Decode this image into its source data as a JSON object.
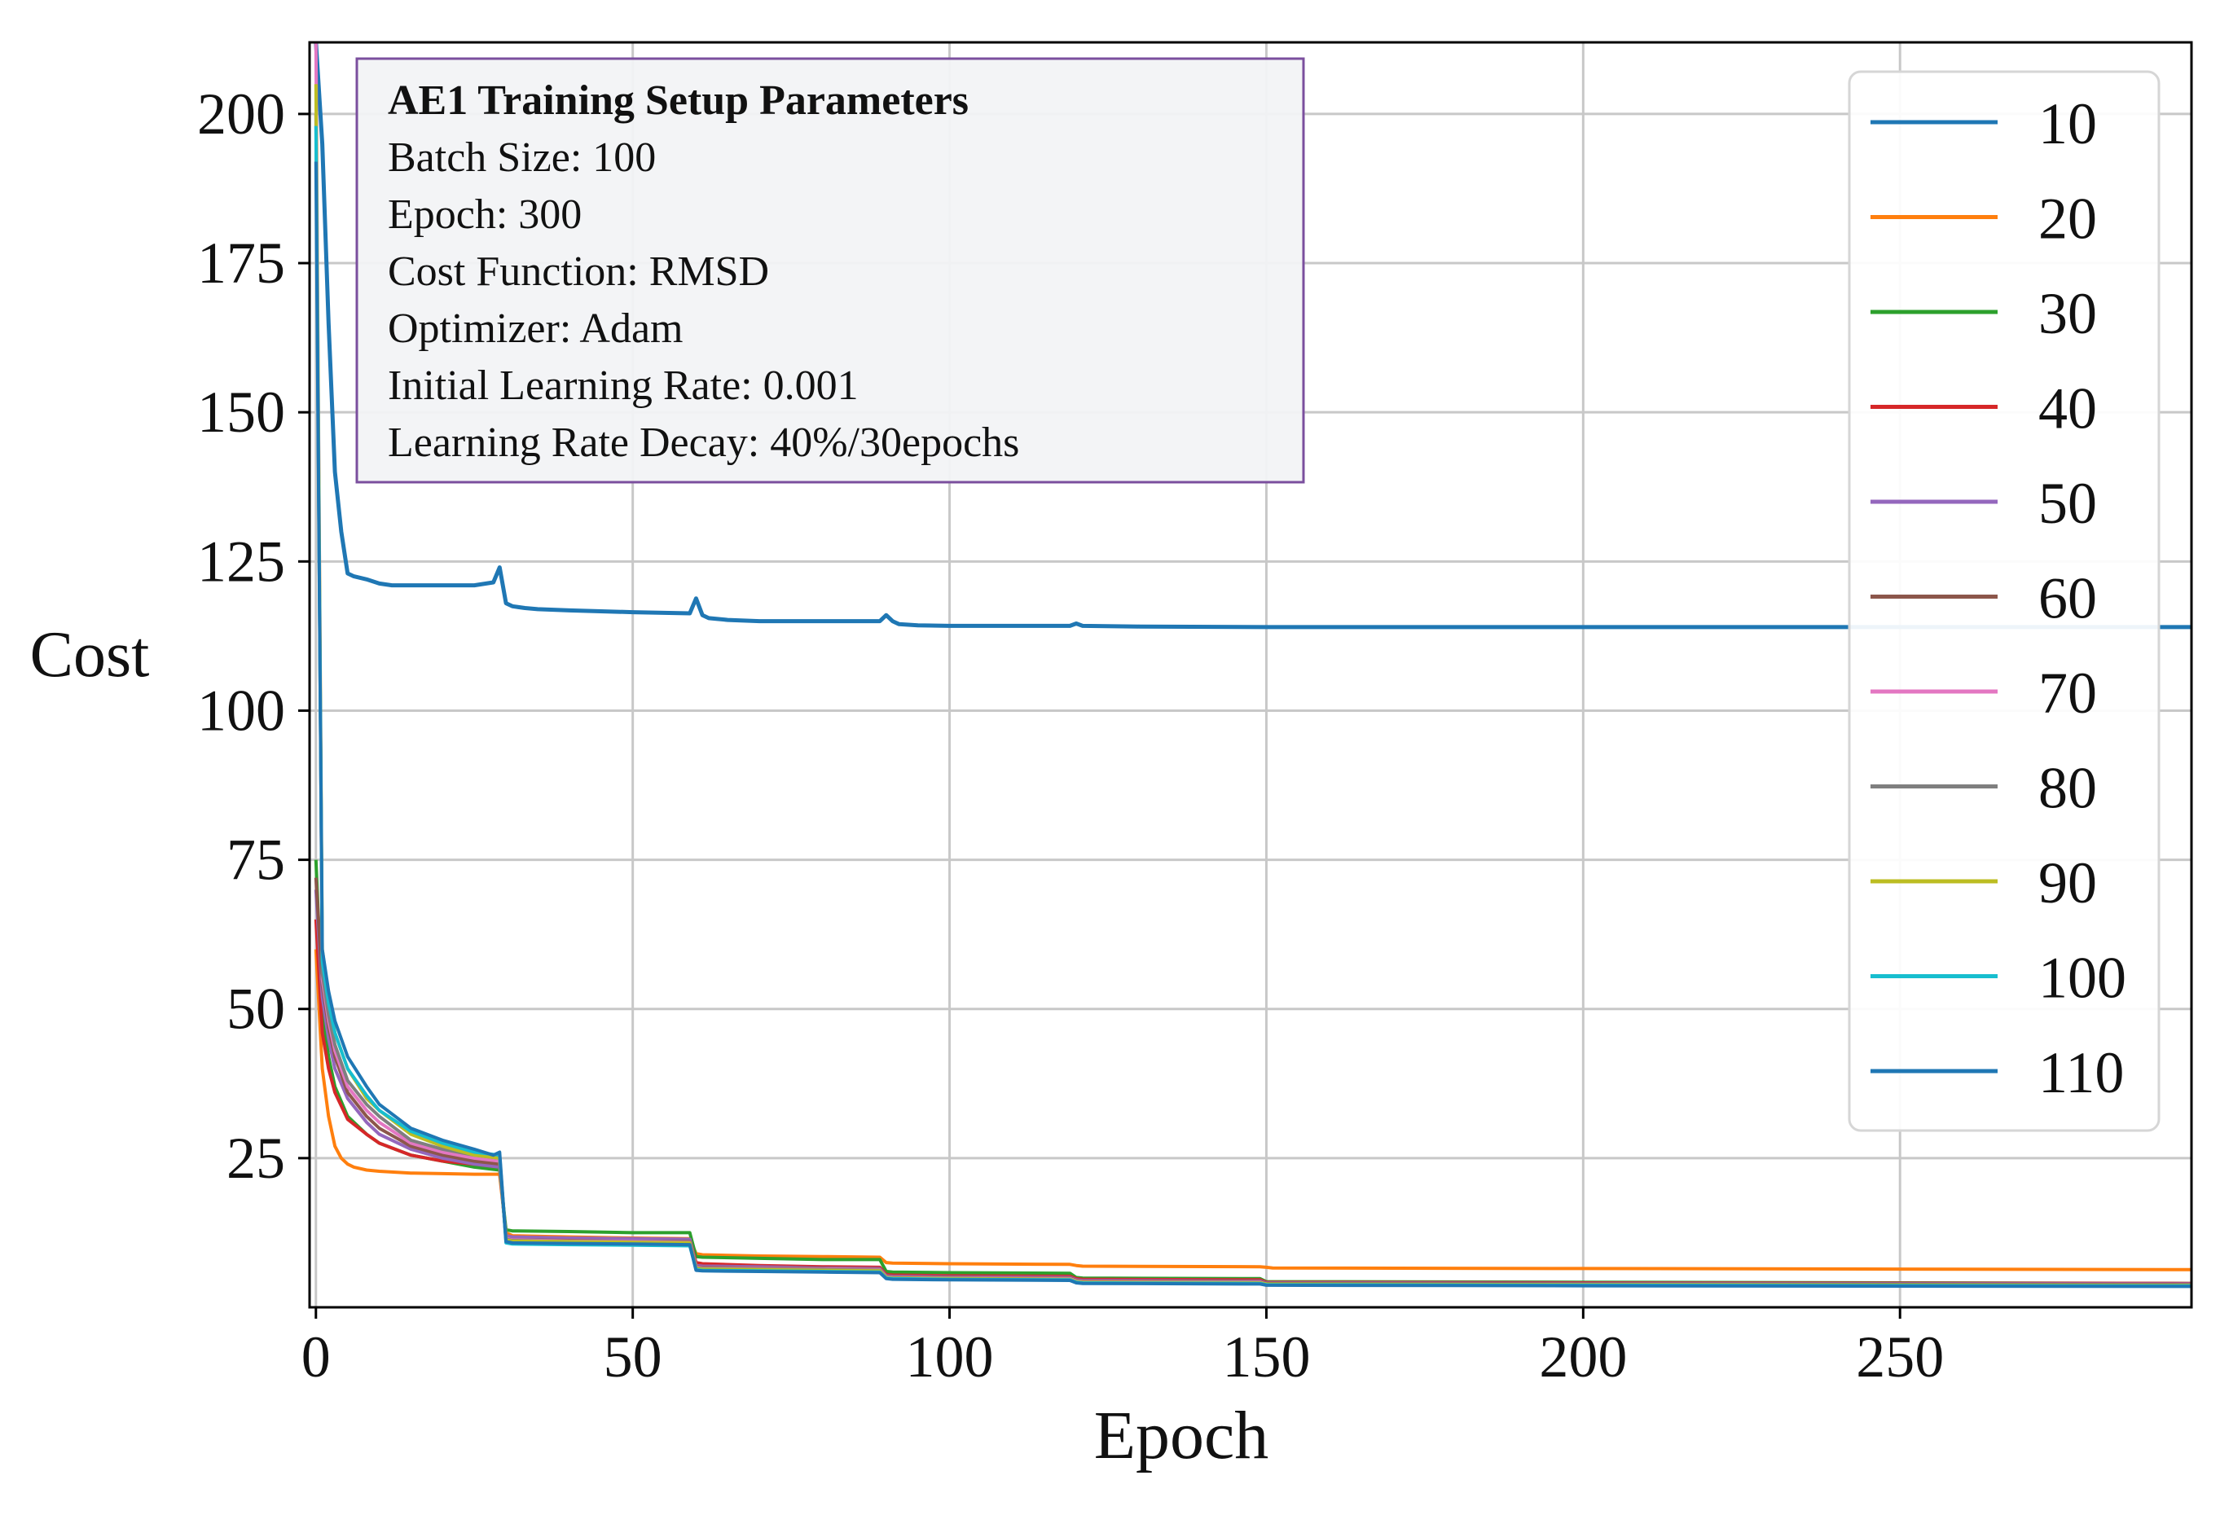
{
  "chart_data": {
    "type": "line",
    "xlabel": "Epoch",
    "ylabel": "Cost",
    "xlim": [
      -1,
      296
    ],
    "ylim": [
      0,
      212
    ],
    "grid": true,
    "xticks": [
      0,
      50,
      100,
      150,
      200,
      250
    ],
    "yticks": [
      25,
      50,
      75,
      100,
      125,
      150,
      175,
      200
    ],
    "legend_position": "top-right",
    "annotation": {
      "title": "AE1 Training Setup Parameters",
      "lines": [
        "Batch Size: 100",
        "Epoch: 300",
        "Cost Function: RMSD",
        "Optimizer: Adam",
        "Initial Learning Rate: 0.001",
        "Learning Rate Decay: 40%/30epochs"
      ]
    },
    "series": [
      {
        "name": "10",
        "color": "#1f77b4",
        "x": [
          0,
          1,
          2,
          3,
          4,
          5,
          6,
          8,
          10,
          12,
          15,
          18,
          20,
          25,
          28,
          29,
          30,
          31,
          33,
          35,
          40,
          50,
          59,
          60,
          61,
          62,
          65,
          70,
          80,
          89,
          90,
          91,
          92,
          95,
          100,
          119,
          120,
          121,
          130,
          150,
          180,
          200,
          250,
          296
        ],
        "y": [
          212,
          195,
          165,
          140,
          130,
          123,
          122.5,
          122,
          121.3,
          121,
          121,
          121,
          121,
          121,
          121.5,
          124,
          118,
          117.5,
          117.2,
          117,
          116.8,
          116.5,
          116.3,
          118.8,
          116,
          115.5,
          115.2,
          115,
          115,
          115,
          116,
          115,
          114.5,
          114.3,
          114.2,
          114.2,
          114.6,
          114.2,
          114.1,
          114,
          114,
          114,
          114,
          114
        ]
      },
      {
        "name": "20",
        "color": "#ff7f0e",
        "x": [
          0,
          1,
          2,
          3,
          4,
          5,
          6,
          8,
          10,
          15,
          20,
          25,
          29,
          30,
          31,
          40,
          50,
          59,
          60,
          61,
          70,
          80,
          89,
          90,
          91,
          100,
          119,
          120,
          121,
          149,
          150,
          151,
          200,
          250,
          296
        ],
        "y": [
          60,
          40,
          32,
          27,
          25,
          24,
          23.5,
          23,
          22.8,
          22.5,
          22.4,
          22.3,
          22.3,
          12.5,
          12,
          11.8,
          11.6,
          11.5,
          9,
          8.8,
          8.6,
          8.5,
          8.4,
          7.5,
          7.4,
          7.3,
          7.2,
          7,
          6.9,
          6.8,
          6.7,
          6.6,
          6.5,
          6.4,
          6.3
        ]
      },
      {
        "name": "30",
        "color": "#2ca02c",
        "x": [
          0,
          1,
          2,
          3,
          5,
          8,
          10,
          15,
          20,
          25,
          29,
          30,
          31,
          40,
          50,
          59,
          60,
          61,
          70,
          80,
          89,
          90,
          91,
          100,
          119,
          120,
          121,
          149,
          150,
          200,
          250,
          296
        ],
        "y": [
          75,
          50,
          42,
          37,
          32,
          29,
          27.5,
          25.5,
          24.5,
          23.5,
          23,
          13,
          12.8,
          12.7,
          12.5,
          12.5,
          8.5,
          8.4,
          8.2,
          8,
          8,
          6,
          5.9,
          5.8,
          5.7,
          5,
          4.9,
          4.8,
          4.3,
          4.2,
          4.1,
          4
        ]
      },
      {
        "name": "40",
        "color": "#d62728",
        "x": [
          0,
          1,
          2,
          3,
          5,
          8,
          10,
          15,
          20,
          25,
          29,
          30,
          31,
          40,
          50,
          59,
          60,
          61,
          70,
          80,
          89,
          90,
          91,
          100,
          119,
          120,
          121,
          149,
          150,
          200,
          296
        ],
        "y": [
          65,
          46,
          40,
          36,
          31.5,
          29,
          27.5,
          25.5,
          24.5,
          24,
          23.5,
          12,
          11.8,
          11.6,
          11.5,
          11.4,
          7.5,
          7.3,
          7,
          6.8,
          6.7,
          5.5,
          5.4,
          5.3,
          5.2,
          4.8,
          4.7,
          4.6,
          4.2,
          4.1,
          4
        ]
      },
      {
        "name": "50",
        "color": "#9467bd",
        "x": [
          0,
          1,
          2,
          3,
          5,
          8,
          10,
          15,
          20,
          25,
          29,
          30,
          31,
          40,
          50,
          59,
          60,
          61,
          70,
          80,
          89,
          90,
          91,
          100,
          119,
          120,
          121,
          149,
          150,
          200,
          296
        ],
        "y": [
          70,
          52,
          45,
          40,
          35,
          31,
          29,
          26.5,
          25,
          24,
          23.5,
          12,
          11.8,
          11.6,
          11.5,
          11.4,
          7,
          6.9,
          6.8,
          6.6,
          6.5,
          5.3,
          5.2,
          5.1,
          5,
          4.6,
          4.5,
          4.4,
          4.1,
          4,
          3.9
        ]
      },
      {
        "name": "60",
        "color": "#8c564b",
        "x": [
          0,
          1,
          2,
          3,
          5,
          8,
          10,
          15,
          20,
          25,
          29,
          30,
          31,
          40,
          50,
          59,
          60,
          61,
          70,
          80,
          89,
          90,
          91,
          100,
          119,
          120,
          121,
          149,
          150,
          200,
          296
        ],
        "y": [
          72,
          54,
          47,
          42,
          36,
          32,
          30,
          27,
          25.5,
          24.5,
          24,
          11.5,
          11.3,
          11.2,
          11,
          11,
          6.8,
          6.7,
          6.6,
          6.5,
          6.4,
          5.2,
          5.1,
          5,
          4.9,
          4.5,
          4.4,
          4.3,
          4,
          3.9,
          3.8
        ]
      },
      {
        "name": "70",
        "color": "#e377c2",
        "x": [
          0,
          1,
          2,
          3,
          5,
          8,
          10,
          15,
          20,
          25,
          29,
          30,
          31,
          40,
          50,
          59,
          60,
          61,
          70,
          80,
          89,
          90,
          91,
          100,
          119,
          120,
          121,
          149,
          150,
          200,
          296
        ],
        "y": [
          212,
          55,
          48,
          43,
          37,
          33,
          31,
          27.5,
          26,
          25,
          24.5,
          11.5,
          11.3,
          11.1,
          11,
          10.9,
          6.7,
          6.6,
          6.5,
          6.4,
          6.3,
          5.1,
          5,
          4.9,
          4.8,
          4.4,
          4.3,
          4.2,
          3.9,
          3.8,
          3.7
        ]
      },
      {
        "name": "80",
        "color": "#7f7f7f",
        "x": [
          0,
          1,
          2,
          3,
          5,
          8,
          10,
          15,
          20,
          25,
          29,
          30,
          31,
          40,
          50,
          59,
          60,
          61,
          70,
          80,
          89,
          90,
          91,
          100,
          119,
          120,
          121,
          149,
          150,
          200,
          296
        ],
        "y": [
          200,
          56,
          49,
          44,
          38,
          34,
          32,
          28,
          26.5,
          25.5,
          25,
          11.4,
          11.2,
          11,
          10.9,
          10.8,
          6.6,
          6.5,
          6.4,
          6.3,
          6.2,
          5,
          4.9,
          4.8,
          4.7,
          4.3,
          4.2,
          4.1,
          3.9,
          3.8,
          3.7
        ]
      },
      {
        "name": "90",
        "color": "#bcbd22",
        "x": [
          0,
          1,
          2,
          3,
          5,
          8,
          10,
          15,
          20,
          25,
          29,
          30,
          31,
          40,
          50,
          59,
          60,
          61,
          70,
          80,
          89,
          90,
          91,
          100,
          119,
          120,
          121,
          149,
          150,
          200,
          296
        ],
        "y": [
          205,
          60,
          52,
          46,
          40,
          35,
          33,
          29,
          27,
          25.5,
          25,
          11.3,
          11.1,
          11,
          10.9,
          10.8,
          6.5,
          6.4,
          6.3,
          6.2,
          6.1,
          5,
          4.9,
          4.8,
          4.7,
          4.3,
          4.2,
          4.1,
          3.9,
          3.8,
          3.7
        ]
      },
      {
        "name": "100",
        "color": "#17becf",
        "x": [
          0,
          1,
          2,
          3,
          5,
          8,
          10,
          15,
          20,
          25,
          29,
          30,
          31,
          40,
          50,
          59,
          60,
          61,
          70,
          80,
          89,
          90,
          91,
          100,
          119,
          120,
          121,
          149,
          150,
          200,
          296
        ],
        "y": [
          198,
          58,
          51,
          46,
          40,
          35.5,
          33,
          29.5,
          27.5,
          26,
          25.5,
          10.8,
          10.6,
          10.5,
          10.4,
          10.3,
          6.3,
          6.2,
          6.1,
          6,
          5.9,
          4.9,
          4.8,
          4.7,
          4.6,
          4.2,
          4.1,
          4,
          3.8,
          3.7,
          3.6
        ]
      },
      {
        "name": "110",
        "color": "#1f77b4",
        "x": [
          0,
          1,
          2,
          3,
          5,
          8,
          10,
          15,
          20,
          25,
          28,
          29,
          30,
          31,
          40,
          50,
          59,
          60,
          61,
          70,
          80,
          89,
          90,
          91,
          100,
          119,
          120,
          121,
          149,
          150,
          200,
          296
        ],
        "y": [
          192,
          60,
          53,
          48,
          42,
          37,
          34,
          30,
          28,
          26.5,
          25.5,
          26,
          11,
          10.8,
          10.7,
          10.6,
          10.5,
          6.2,
          6.1,
          6,
          5.9,
          5.8,
          4.8,
          4.7,
          4.6,
          4.5,
          4.1,
          4,
          3.9,
          3.7,
          3.6,
          3.5
        ]
      }
    ]
  }
}
